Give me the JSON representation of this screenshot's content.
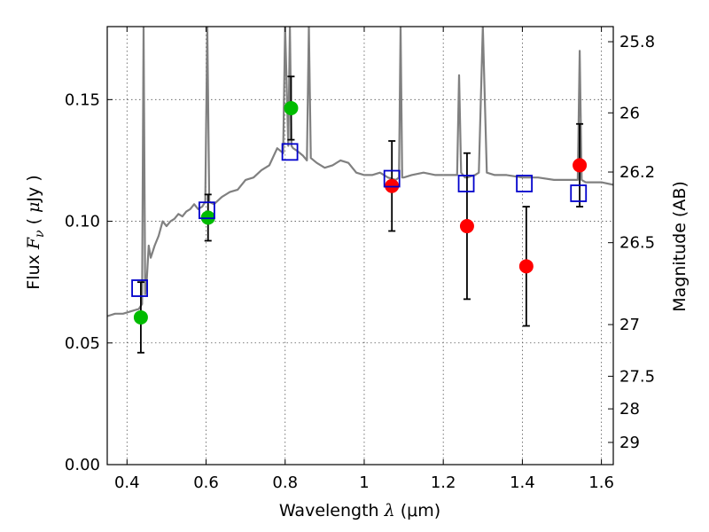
{
  "chart_data": {
    "type": "scatter",
    "xlabel": "Wavelength",
    "xlabel_symbol": "λ",
    "xlabel_unit": "(μm)",
    "ylabel": "Flux",
    "ylabel_symbol": "F",
    "ylabel_subscript": "ν",
    "ylabel_unit_open": "(",
    "ylabel_unit_mu": "μ",
    "ylabel_unit_rest": "Jy )",
    "y2label": "Magnitude (AB)",
    "xlim": [
      0.35,
      1.63
    ],
    "ylim": [
      0.0,
      0.18
    ],
    "grid": true,
    "x_ticks": [
      0.4,
      0.6,
      0.8,
      1.0,
      1.2,
      1.4,
      1.6
    ],
    "x_tick_labels": [
      "0.4",
      "0.6",
      "0.8",
      "1",
      "1.2",
      "1.4",
      "1.6"
    ],
    "y_ticks": [
      0.0,
      0.05,
      0.1,
      0.15
    ],
    "y_tick_labels": [
      "0.00",
      "0.05",
      "0.10",
      "0.15"
    ],
    "y2_ticks": [
      25.8,
      26,
      26.2,
      26.5,
      27,
      27.5,
      28,
      29
    ],
    "y2_tick_labels": [
      "25.8",
      "26",
      "26.2",
      "26.5",
      "27",
      "27.5",
      "28",
      "29"
    ],
    "colors": {
      "spectrum": "#808080",
      "optical": "#00bb00",
      "nir": "#ff0000",
      "model": "#0000cc",
      "errorbar": "#000000",
      "grid": "#555555"
    },
    "series": [
      {
        "name": "model-spectrum",
        "kind": "line",
        "x": [
          0.35,
          0.37,
          0.39,
          0.41,
          0.43,
          0.438,
          0.442,
          0.446,
          0.45,
          0.455,
          0.46,
          0.47,
          0.48,
          0.49,
          0.5,
          0.51,
          0.52,
          0.53,
          0.54,
          0.55,
          0.56,
          0.57,
          0.58,
          0.59,
          0.598,
          0.603,
          0.608,
          0.62,
          0.64,
          0.66,
          0.68,
          0.7,
          0.72,
          0.74,
          0.76,
          0.78,
          0.795,
          0.8,
          0.808,
          0.812,
          0.816,
          0.82,
          0.83,
          0.845,
          0.855,
          0.86,
          0.865,
          0.88,
          0.9,
          0.92,
          0.94,
          0.96,
          0.98,
          1.0,
          1.02,
          1.04,
          1.06,
          1.08,
          1.088,
          1.092,
          1.096,
          1.1,
          1.12,
          1.15,
          1.18,
          1.21,
          1.235,
          1.24,
          1.245,
          1.255,
          1.26,
          1.28,
          1.29,
          1.3,
          1.31,
          1.33,
          1.36,
          1.4,
          1.44,
          1.48,
          1.52,
          1.54,
          1.545,
          1.55,
          1.56,
          1.58,
          1.6,
          1.63
        ],
        "y": [
          0.061,
          0.062,
          0.062,
          0.063,
          0.064,
          0.066,
          0.18,
          0.07,
          0.076,
          0.09,
          0.085,
          0.09,
          0.094,
          0.1,
          0.098,
          0.1,
          0.101,
          0.103,
          0.102,
          0.104,
          0.105,
          0.107,
          0.105,
          0.106,
          0.108,
          0.18,
          0.108,
          0.107,
          0.11,
          0.112,
          0.113,
          0.117,
          0.118,
          0.121,
          0.123,
          0.13,
          0.128,
          0.18,
          0.131,
          0.18,
          0.131,
          0.13,
          0.129,
          0.127,
          0.125,
          0.18,
          0.126,
          0.124,
          0.122,
          0.123,
          0.125,
          0.124,
          0.12,
          0.119,
          0.119,
          0.12,
          0.118,
          0.117,
          0.118,
          0.18,
          0.118,
          0.118,
          0.119,
          0.12,
          0.119,
          0.119,
          0.119,
          0.16,
          0.12,
          0.118,
          0.118,
          0.119,
          0.12,
          0.18,
          0.12,
          0.119,
          0.119,
          0.118,
          0.118,
          0.117,
          0.117,
          0.117,
          0.17,
          0.117,
          0.116,
          0.116,
          0.116,
          0.115
        ]
      },
      {
        "name": "optical-photometry",
        "kind": "points",
        "x": [
          0.435,
          0.605,
          0.815
        ],
        "y": [
          0.0605,
          0.1015,
          0.1465
        ],
        "err": [
          0.0145,
          0.0095,
          0.013
        ]
      },
      {
        "name": "nir-photometry",
        "kind": "points",
        "x": [
          1.07,
          1.26,
          1.41,
          1.545
        ],
        "y": [
          0.1145,
          0.098,
          0.0815,
          0.123
        ],
        "err": [
          0.0185,
          0.03,
          0.0245,
          0.017
        ]
      },
      {
        "name": "model-synthetic-photometry",
        "kind": "squares",
        "x": [
          0.432,
          0.602,
          0.812,
          1.07,
          1.258,
          1.405,
          1.542
        ],
        "y": [
          0.0725,
          0.1045,
          0.1285,
          0.1175,
          0.1155,
          0.1155,
          0.1115
        ]
      }
    ]
  }
}
